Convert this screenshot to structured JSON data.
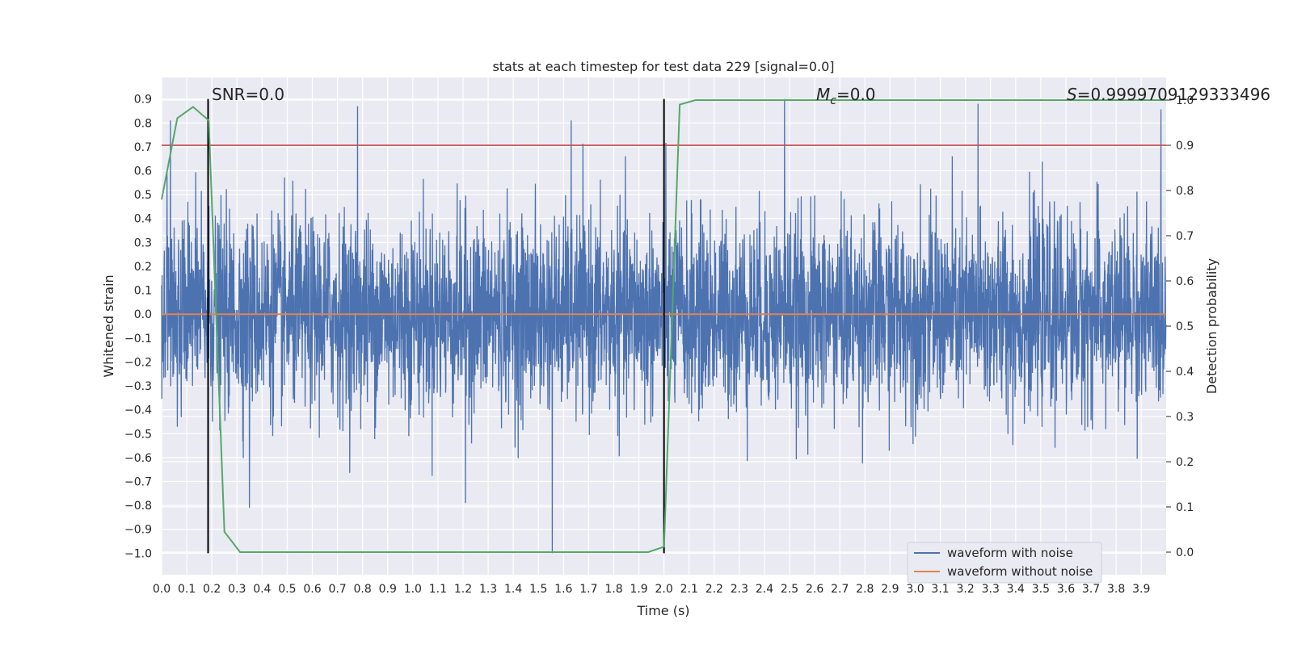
{
  "chart_data": {
    "type": "line",
    "title": "stats at each timestep for test data 229 [signal=0.0]",
    "xlabel": "Time (s)",
    "ylabel_left": "Whitened strain",
    "ylabel_right": "Detection probability",
    "xlim": [
      0.0,
      3.999
    ],
    "ylim_left": [
      -1.09,
      0.99
    ],
    "ylim_right": [
      -0.05,
      1.05
    ],
    "x_ticks": [
      "0.0",
      "0.1",
      "0.2",
      "0.3",
      "0.4",
      "0.5",
      "0.6",
      "0.7",
      "0.8",
      "0.9",
      "1.0",
      "1.1",
      "1.2",
      "1.3",
      "1.4",
      "1.5",
      "1.6",
      "1.7",
      "1.8",
      "1.9",
      "2.0",
      "2.1",
      "2.2",
      "2.3",
      "2.4",
      "2.5",
      "2.6",
      "2.7",
      "2.8",
      "2.9",
      "3.0",
      "3.1",
      "3.2",
      "3.3",
      "3.4",
      "3.5",
      "3.6",
      "3.7",
      "3.8",
      "3.9"
    ],
    "y_ticks_left": [
      "−1.0",
      "−0.9",
      "−0.8",
      "−0.7",
      "−0.6",
      "−0.5",
      "−0.4",
      "−0.3",
      "−0.2",
      "−0.1",
      "0.0",
      "0.1",
      "0.2",
      "0.3",
      "0.4",
      "0.5",
      "0.6",
      "0.7",
      "0.8",
      "0.9"
    ],
    "y_ticks_right": [
      "0.0",
      "0.1",
      "0.2",
      "0.3",
      "0.4",
      "0.5",
      "0.6",
      "0.7",
      "0.8",
      "0.9",
      "1.0"
    ],
    "annotations": {
      "snr": "SNR=0.0",
      "mc_symbol": "M",
      "mc_sub": "c",
      "mc_value": "=0.0",
      "s_symbol": "S",
      "s_value": "=0.9999709129333496"
    },
    "vertical_lines_x": [
      0.185,
      2.0
    ],
    "vertical_lines_range": [
      -1.0,
      0.9
    ],
    "threshold_line_right": 0.9,
    "grid": true,
    "legend_position": "lower-right",
    "series": [
      {
        "name": "waveform with noise",
        "color": "#4c72b0",
        "axis": "left",
        "amplitude_range": [
          -1.0,
          0.9
        ],
        "notable_peaks": [
          {
            "x": 1.555,
            "y": -1.0
          },
          {
            "x": 2.48,
            "y": 0.9
          },
          {
            "x": 3.25,
            "y": 0.88
          },
          {
            "x": 0.78,
            "y": 0.87
          },
          {
            "x": 0.035,
            "y": 0.81
          },
          {
            "x": 1.63,
            "y": 0.81
          },
          {
            "x": 0.35,
            "y": -0.81
          },
          {
            "x": 1.21,
            "y": -0.79
          }
        ]
      },
      {
        "name": "waveform without noise",
        "color": "#dd8452",
        "axis": "left",
        "x": [
          0.0,
          3.999
        ],
        "y": [
          0.0,
          0.0
        ]
      },
      {
        "color": "#55a868",
        "axis": "right",
        "x": [
          0.0,
          0.0625,
          0.125,
          0.1875,
          0.25,
          0.3125,
          1.9375,
          2.0,
          2.0625,
          2.125,
          3.999
        ],
        "y": [
          0.78,
          0.96,
          0.985,
          0.955,
          0.045,
          0.0,
          0.0,
          0.012,
          0.99,
          1.0,
          1.0
        ]
      }
    ]
  }
}
